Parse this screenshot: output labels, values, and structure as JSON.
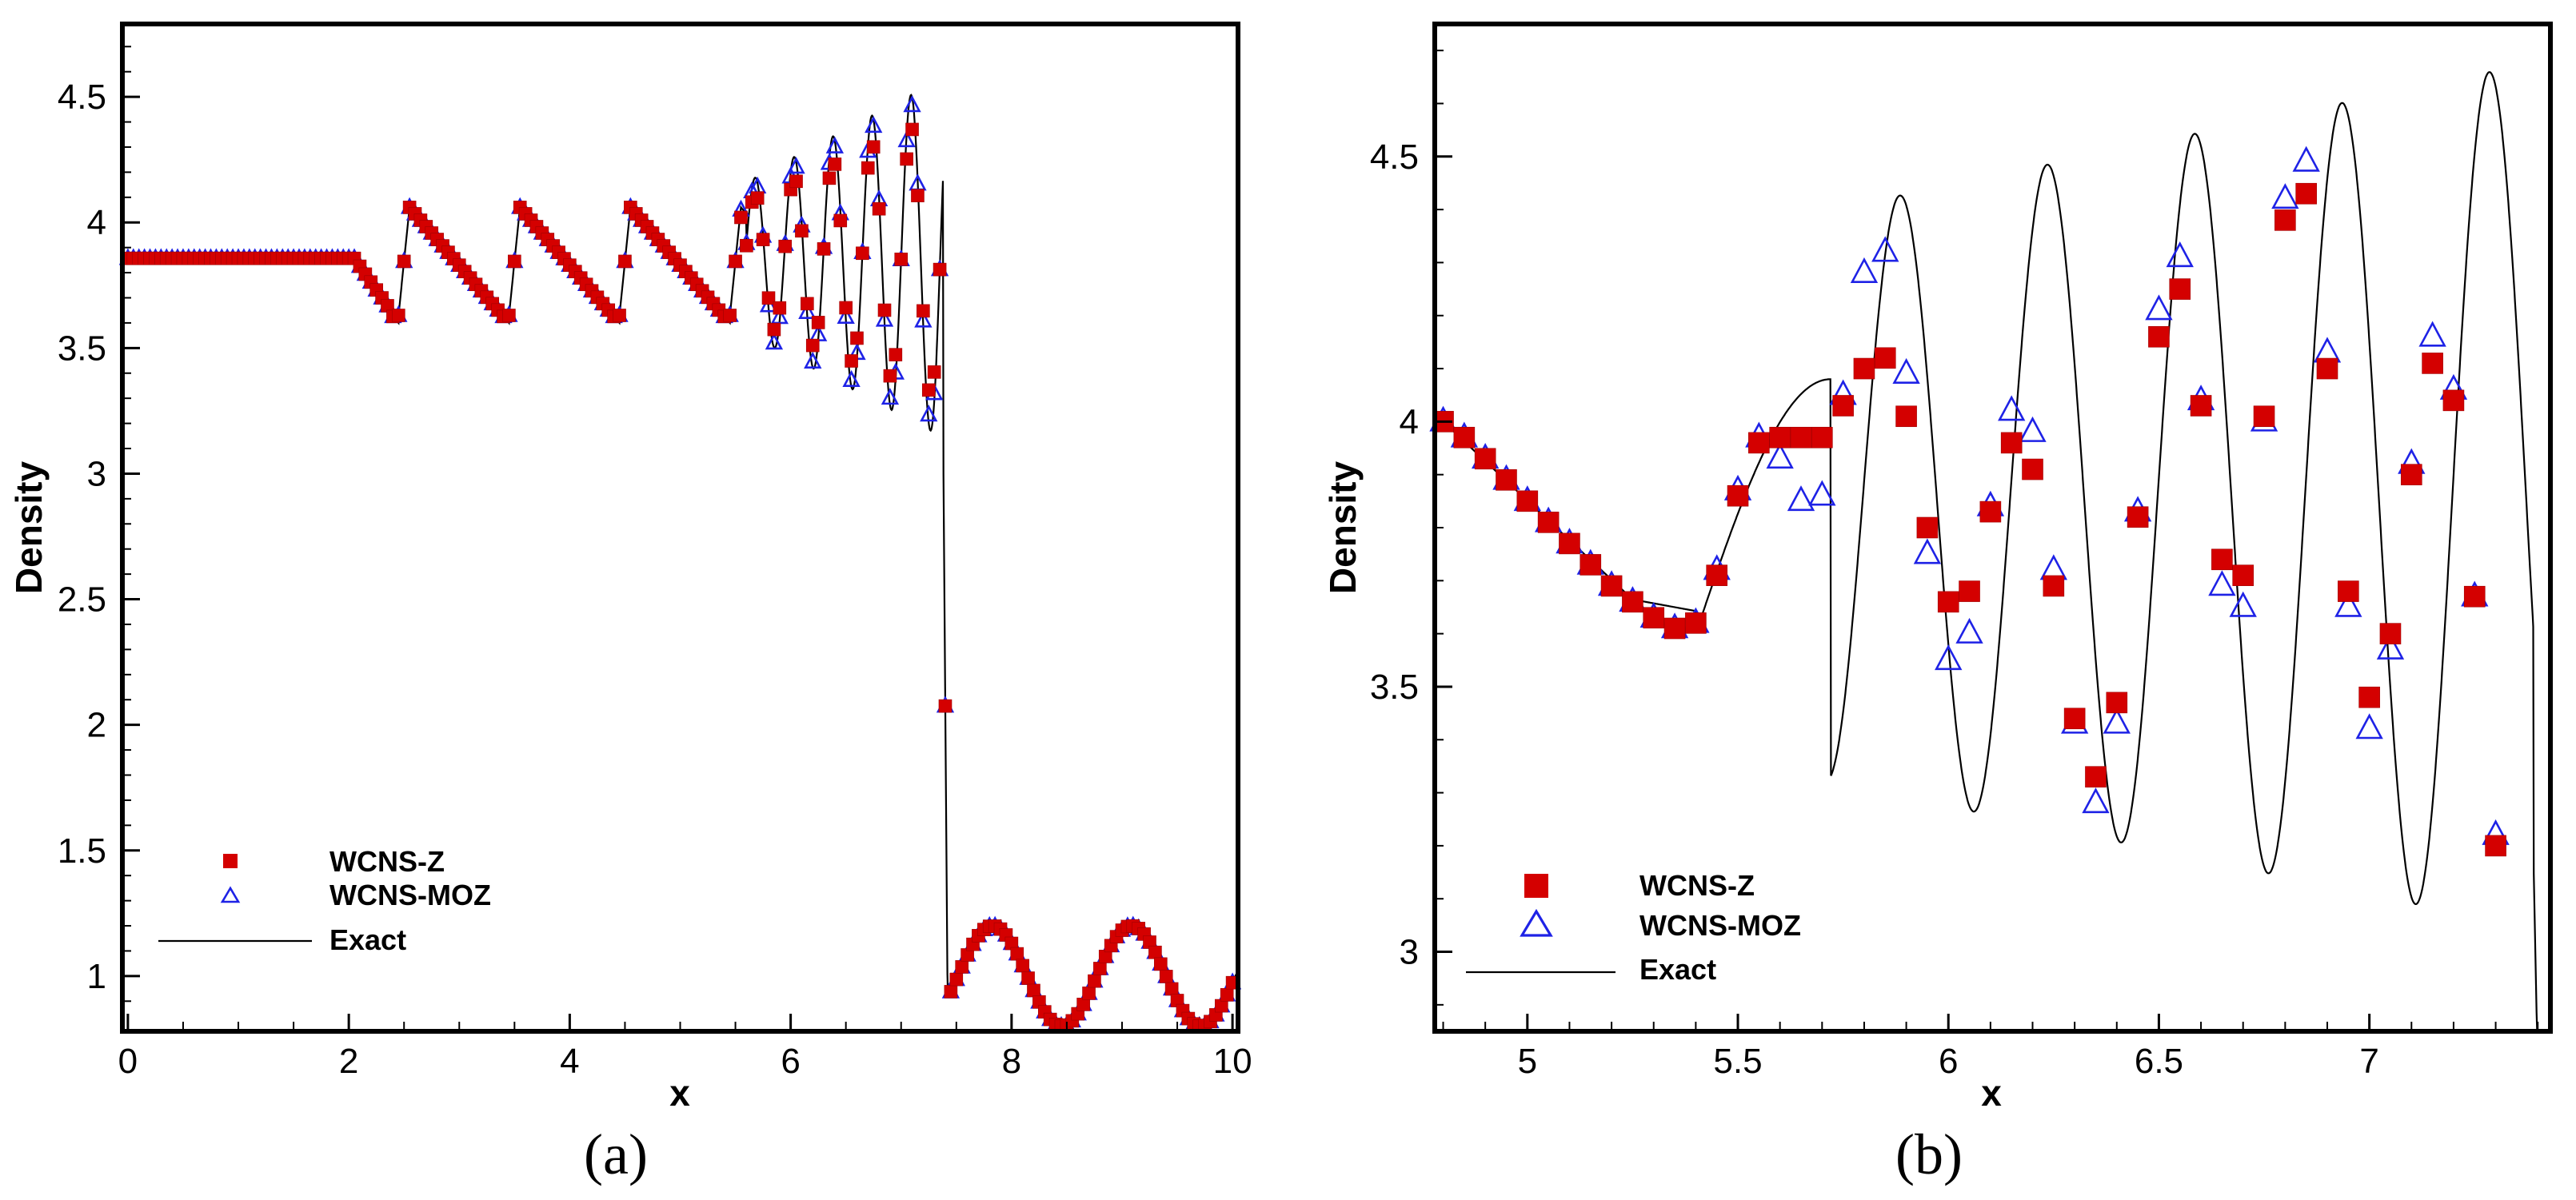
{
  "figure": {
    "captions": [
      "(a)",
      "(b)"
    ],
    "colors": {
      "wcns_z": "#d40000",
      "wcns_moz": "#1e22e6",
      "exact": "#000000"
    }
  },
  "chart_data": [
    {
      "type": "scatter",
      "panel": "(a)",
      "title": "",
      "xlabel": "x",
      "ylabel": "Density",
      "xlim": [
        -0.05,
        10.05
      ],
      "ylim": [
        0.78,
        4.79
      ],
      "xticks": [
        "0",
        "2",
        "4",
        "6",
        "8",
        "10"
      ],
      "yticks": [
        "1",
        "1.5",
        "2",
        "2.5",
        "3",
        "3.5",
        "4",
        "4.5"
      ],
      "legend": {
        "placement": "lower-left",
        "entries": [
          "WCNS-Z",
          "WCNS-MOZ",
          "Exact"
        ]
      },
      "series": [
        {
          "name": "WCNS-Z",
          "marker": "filled-square",
          "sampling": "cell centers dx=0.05, sampled from exact profile with reduced amplitude in post-shock oscillation zone"
        },
        {
          "name": "WCNS-MOZ",
          "marker": "open-triangle",
          "sampling": "cell centers dx=0.05, closer to exact profile"
        },
        {
          "name": "Exact",
          "marker": "line",
          "profile": "Shu-Osher density: 3.857143 for x<2.0 (pre-wave), post-shock entropy-wave oscillations in 2-7.4, shock at x=7.4, 1+0.2*sin(5(x-5)) for x>7.4"
        }
      ]
    },
    {
      "type": "scatter",
      "panel": "(b)",
      "title": "",
      "xlabel": "x",
      "ylabel": "Density",
      "xlim": [
        4.78,
        7.43
      ],
      "ylim": [
        2.85,
        4.75
      ],
      "xticks": [
        "5",
        "5.5",
        "6",
        "6.5",
        "7"
      ],
      "yticks": [
        "3",
        "3.5",
        "4",
        "4.5"
      ],
      "legend": {
        "placement": "lower-left",
        "entries": [
          "WCNS-Z",
          "WCNS-MOZ",
          "Exact"
        ]
      },
      "series": [
        {
          "name": "WCNS-Z",
          "x": [
            4.8,
            4.85,
            4.9,
            4.95,
            5.0,
            5.05,
            5.1,
            5.15,
            5.2,
            5.25,
            5.3,
            5.35,
            5.4,
            5.45,
            5.5,
            5.55,
            5.6,
            5.65,
            5.7,
            5.75,
            5.8,
            5.85,
            5.9,
            5.95,
            6.0,
            6.05,
            6.1,
            6.15,
            6.2,
            6.25,
            6.3,
            6.35,
            6.4,
            6.45,
            6.5,
            6.55,
            6.6,
            6.65,
            6.7,
            6.75,
            6.8,
            6.85,
            6.9,
            6.95,
            7.0,
            7.05,
            7.1,
            7.15,
            7.2,
            7.25,
            7.3
          ],
          "y": [
            4.0,
            3.97,
            3.93,
            3.89,
            3.85,
            3.81,
            3.77,
            3.73,
            3.69,
            3.66,
            3.63,
            3.61,
            3.62,
            3.71,
            3.86,
            3.96,
            3.97,
            3.97,
            3.97,
            4.03,
            4.1,
            4.12,
            4.01,
            3.8,
            3.66,
            3.68,
            3.83,
            3.96,
            3.91,
            3.69,
            3.44,
            3.33,
            3.47,
            3.82,
            4.16,
            4.25,
            4.03,
            3.74,
            3.71,
            4.01,
            4.38,
            4.43,
            4.1,
            3.68,
            3.48,
            3.6,
            3.9,
            4.11,
            4.04,
            3.67,
            3.2
          ]
        },
        {
          "name": "WCNS-MOZ",
          "x": [
            4.8,
            4.85,
            4.9,
            4.95,
            5.0,
            5.05,
            5.1,
            5.15,
            5.2,
            5.25,
            5.3,
            5.35,
            5.4,
            5.45,
            5.5,
            5.55,
            5.6,
            5.65,
            5.7,
            5.75,
            5.8,
            5.85,
            5.9,
            5.95,
            6.0,
            6.05,
            6.1,
            6.15,
            6.2,
            6.25,
            6.3,
            6.35,
            6.4,
            6.45,
            6.5,
            6.55,
            6.6,
            6.65,
            6.7,
            6.75,
            6.8,
            6.85,
            6.9,
            6.95,
            7.0,
            7.05,
            7.1,
            7.15,
            7.2,
            7.25,
            7.3
          ],
          "y": [
            4.0,
            3.97,
            3.93,
            3.89,
            3.85,
            3.81,
            3.77,
            3.73,
            3.69,
            3.66,
            3.63,
            3.61,
            3.62,
            3.72,
            3.87,
            3.97,
            3.93,
            3.85,
            3.86,
            4.05,
            4.28,
            4.32,
            4.09,
            3.75,
            3.55,
            3.6,
            3.84,
            4.02,
            3.98,
            3.72,
            3.43,
            3.28,
            3.43,
            3.83,
            4.21,
            4.31,
            4.04,
            3.69,
            3.65,
            4.0,
            4.42,
            4.49,
            4.13,
            3.65,
            3.42,
            3.57,
            3.92,
            4.16,
            4.06,
            3.67,
            3.22
          ]
        },
        {
          "name": "Exact",
          "marker": "line",
          "profile": "post-shock entropy-wave oscillations, amplitude growing toward the shock at x~7.4"
        }
      ]
    }
  ]
}
